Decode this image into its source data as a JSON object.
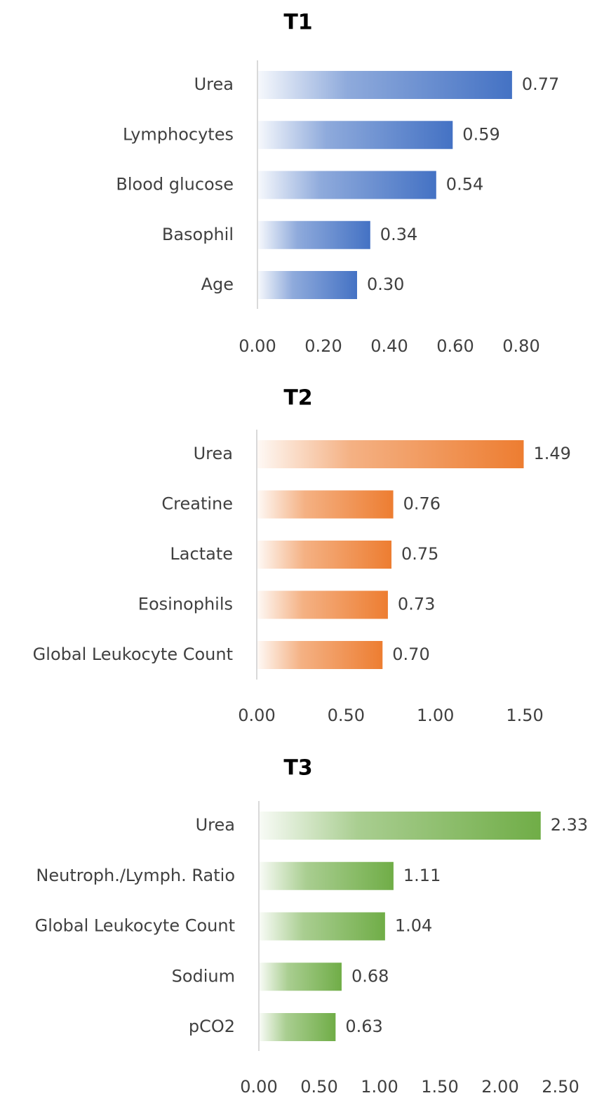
{
  "chart_data": [
    {
      "type": "bar",
      "orientation": "horizontal",
      "title": "T1",
      "categories": [
        "Urea",
        "Lymphocytes",
        "Blood glucose",
        "Basophil",
        "Age"
      ],
      "values": [
        0.77,
        0.59,
        0.54,
        0.34,
        0.3
      ],
      "value_labels": [
        "0.77",
        "0.59",
        "0.54",
        "0.34",
        "0.30"
      ],
      "xlim": [
        0,
        0.8
      ],
      "xticks": [
        "0.00",
        "0.20",
        "0.40",
        "0.60",
        "0.80"
      ],
      "color": "#4472c4",
      "grid": false,
      "fill": "gradient, light to dark from left to right"
    },
    {
      "type": "bar",
      "orientation": "horizontal",
      "title": "T2",
      "categories": [
        "Urea",
        "Creatine",
        "Lactate",
        "Eosinophils",
        "Global Leukocyte Count"
      ],
      "values": [
        1.49,
        0.76,
        0.75,
        0.73,
        0.7
      ],
      "value_labels": [
        "1.49",
        "0.76",
        "0.75",
        "0.73",
        "0.70"
      ],
      "xlim": [
        0,
        1.5
      ],
      "xticks": [
        "0.00",
        "0.50",
        "1.00",
        "1.50"
      ],
      "color": "#ed7d31",
      "grid": false,
      "fill": "gradient, light to dark from left to right"
    },
    {
      "type": "bar",
      "orientation": "horizontal",
      "title": "T3",
      "categories": [
        "Urea",
        "Neutroph./Lymph. Ratio",
        "Global Leukocyte Count",
        "Sodium",
        "pCO2"
      ],
      "values": [
        2.33,
        1.11,
        1.04,
        0.68,
        0.63
      ],
      "value_labels": [
        "2.33",
        "1.11",
        "1.04",
        "0.68",
        "0.63"
      ],
      "xlim": [
        0,
        2.5
      ],
      "xticks": [
        "0.00",
        "0.50",
        "1.00",
        "1.50",
        "2.00",
        "2.50"
      ],
      "color": "#70ad47",
      "grid": false,
      "fill": "gradient, light to dark from left to right"
    }
  ]
}
